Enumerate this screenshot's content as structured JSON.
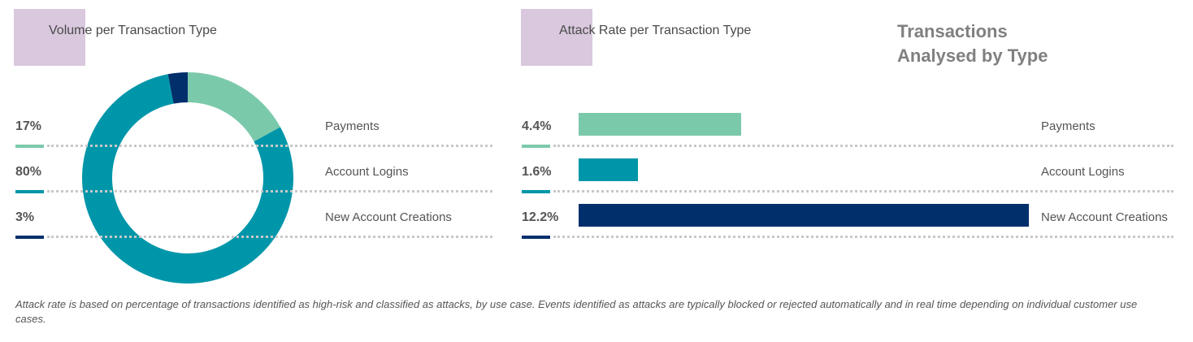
{
  "page_title": "Transactions Analysed by Type",
  "footnote": "Attack rate is based on percentage of transactions identified as high-risk and classified as attacks, by use case. Events identified as attacks are typically blocked or rejected automatically and in real time depending on individual customer use cases.",
  "colors": {
    "payments": "#7bc9ab",
    "logins": "#0096a9",
    "new_accounts": "#002f6c"
  },
  "chart_data": [
    {
      "type": "pie",
      "donut": true,
      "title": "Volume per Transaction Type",
      "categories": [
        "Payments",
        "Account Logins",
        "New Account Creations"
      ],
      "values": [
        17,
        80,
        3
      ],
      "labels": [
        "17%",
        "80%",
        "3%"
      ],
      "colors": [
        "#7bc9ab",
        "#0096a9",
        "#002f6c"
      ]
    },
    {
      "type": "bar",
      "orientation": "horizontal",
      "title": "Attack Rate per Transaction Type",
      "categories": [
        "Payments",
        "Account Logins",
        "New Account Creations"
      ],
      "values": [
        4.4,
        1.6,
        12.2
      ],
      "labels": [
        "4.4%",
        "1.6%",
        "12.2%"
      ],
      "colors": [
        "#7bc9ab",
        "#0096a9",
        "#002f6c"
      ]
    }
  ]
}
